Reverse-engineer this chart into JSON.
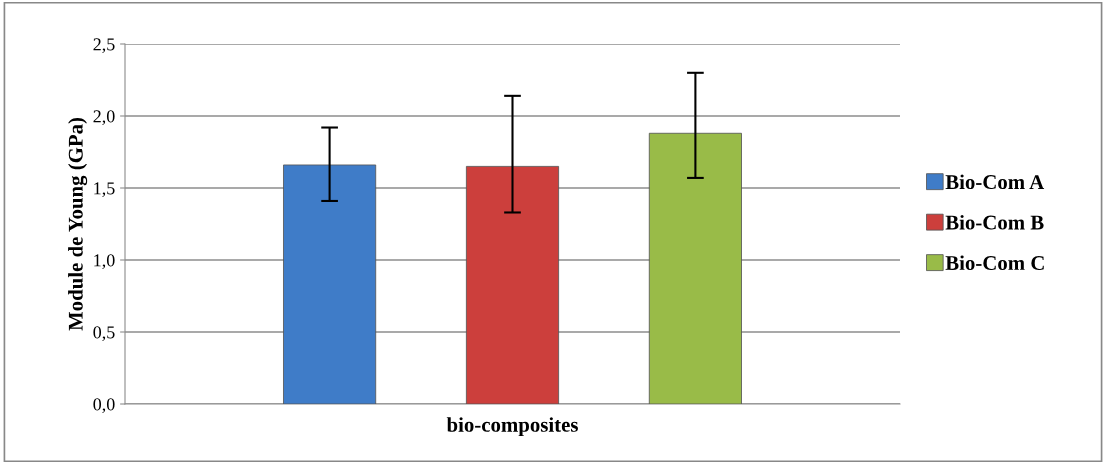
{
  "chart_data": {
    "type": "bar",
    "ylabel": "Module de Young (GPa)",
    "xlabel": "bio-composites",
    "categories": [
      null
    ],
    "series": [
      {
        "name": "Bio-Com A",
        "color": "#3f7cc8",
        "values": [
          1.66
        ],
        "errors": [
          [
            1.41,
            1.92
          ]
        ]
      },
      {
        "name": "Bio-Com B",
        "color": "#cc3f3c",
        "values": [
          1.65
        ],
        "errors": [
          [
            1.33,
            2.14
          ]
        ]
      },
      {
        "name": "Bio-Com C",
        "color": "#99bb48",
        "values": [
          1.88
        ],
        "errors": [
          [
            1.57,
            2.3
          ]
        ]
      }
    ],
    "ylim": [
      0,
      2.5
    ],
    "yticks": [
      {
        "value": 0,
        "label": "0,0"
      },
      {
        "value": 0.5,
        "label": "0,5"
      },
      {
        "value": 1.0,
        "label": "1,0"
      },
      {
        "value": 1.5,
        "label": "1,5"
      },
      {
        "value": 2.0,
        "label": "2,0"
      },
      {
        "value": 2.5,
        "label": "2,5"
      }
    ],
    "grid": "y",
    "legend": "right"
  }
}
